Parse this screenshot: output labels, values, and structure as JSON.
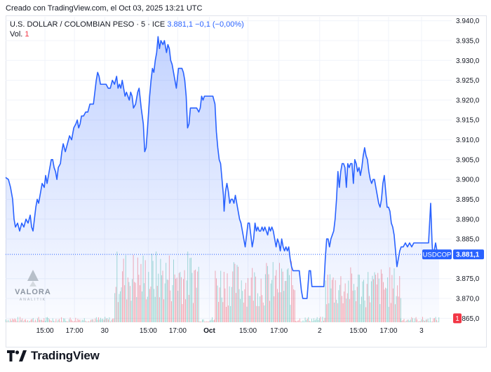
{
  "header": {
    "created_label": "Creado con TradingView.com, el Oct 03, 2025 13:21 UTC"
  },
  "legend": {
    "symbol": "U.S. DOLLAR / COLOMBIAN PESO · 5 · ICE",
    "last": "3.881,1",
    "change": "−0,1 (−0,00%)",
    "vol_label": "Vol.",
    "vol_value": "1"
  },
  "watermark": {
    "brand": "VALORA",
    "sub": "ANALITIK"
  },
  "footer": {
    "logo_text": "TradingView",
    "logo_icon": "tradingview-logo-icon"
  },
  "colors": {
    "line": "#2962ff",
    "fill_top": "#2962ff",
    "vol_up": "#22ab94",
    "vol_down": "#f23645",
    "last_price_tag": "#2962ff",
    "vol_tag": "#f23645"
  },
  "chart_data": {
    "type": "area",
    "symbol_tag": "USDCOP",
    "last_price": 3881.1,
    "last_price_label": "3.881,1",
    "vol_tag_label": "1",
    "y_range": [
      3864,
      3941
    ],
    "y_ticks": [
      {
        "value": 3940,
        "label": "3.940,0"
      },
      {
        "value": 3935,
        "label": "3.935,0"
      },
      {
        "value": 3930,
        "label": "3.930,0"
      },
      {
        "value": 3925,
        "label": "3.925,0"
      },
      {
        "value": 3920,
        "label": "3.920,0"
      },
      {
        "value": 3915,
        "label": "3.915,0"
      },
      {
        "value": 3910,
        "label": "3.910,0"
      },
      {
        "value": 3905,
        "label": "3.905,0"
      },
      {
        "value": 3900,
        "label": "3.900,0"
      },
      {
        "value": 3895,
        "label": "3.895,0"
      },
      {
        "value": 3890,
        "label": "3.890,0"
      },
      {
        "value": 3885,
        "label": "3.885,0"
      },
      {
        "value": 3875,
        "label": "3.875,0"
      },
      {
        "value": 3870,
        "label": "3.870,0"
      },
      {
        "value": 3865,
        "label": "3.865,0"
      }
    ],
    "x_range": [
      0,
      617
    ],
    "x_ticks": [
      {
        "x": 56,
        "label": "15:00",
        "bold": false
      },
      {
        "x": 98,
        "label": "17:00",
        "bold": false
      },
      {
        "x": 141,
        "label": "30",
        "bold": false
      },
      {
        "x": 203,
        "label": "15:00",
        "bold": false
      },
      {
        "x": 245,
        "label": "17:00",
        "bold": false
      },
      {
        "x": 290,
        "label": "Oct",
        "bold": true
      },
      {
        "x": 345,
        "label": "15:00",
        "bold": false
      },
      {
        "x": 389,
        "label": "17:00",
        "bold": false
      },
      {
        "x": 447,
        "label": "2",
        "bold": false
      },
      {
        "x": 502,
        "label": "15:00",
        "bold": false
      },
      {
        "x": 545,
        "label": "17:00",
        "bold": false
      },
      {
        "x": 592,
        "label": "3",
        "bold": false
      }
    ],
    "series": [
      {
        "points": [
          [
            0,
            3900.5
          ],
          [
            4,
            3900
          ],
          [
            7,
            3898
          ],
          [
            10,
            3895
          ],
          [
            12,
            3890
          ],
          [
            14,
            3888
          ],
          [
            17,
            3889
          ],
          [
            20,
            3887
          ],
          [
            23,
            3889
          ],
          [
            26,
            3888
          ],
          [
            29,
            3890
          ],
          [
            32,
            3889
          ],
          [
            35,
            3891
          ],
          [
            37,
            3888
          ],
          [
            39,
            3887
          ],
          [
            41,
            3890
          ],
          [
            43,
            3893
          ],
          [
            45,
            3895
          ],
          [
            47,
            3894
          ],
          [
            50,
            3897
          ],
          [
            52,
            3899
          ],
          [
            55,
            3898
          ],
          [
            57,
            3901
          ],
          [
            59,
            3899
          ],
          [
            61,
            3901
          ],
          [
            63,
            3903
          ],
          [
            65,
            3905
          ],
          [
            67,
            3905
          ],
          [
            69,
            3903
          ],
          [
            71,
            3902
          ],
          [
            73,
            3900
          ],
          [
            75,
            3903
          ],
          [
            78,
            3904
          ],
          [
            80,
            3907
          ],
          [
            82,
            3909
          ],
          [
            85,
            3907
          ],
          [
            88,
            3909
          ],
          [
            91,
            3911
          ],
          [
            94,
            3910
          ],
          [
            97,
            3913
          ],
          [
            100,
            3914
          ],
          [
            102,
            3915
          ],
          [
            104,
            3913
          ],
          [
            106,
            3914
          ],
          [
            108,
            3916
          ],
          [
            111,
            3916
          ],
          [
            114,
            3917
          ],
          [
            117,
            3917
          ],
          [
            120,
            3919
          ],
          [
            123,
            3919
          ],
          [
            125,
            3919
          ],
          [
            127,
            3922
          ],
          [
            129,
            3925
          ],
          [
            131,
            3927
          ],
          [
            133,
            3926
          ],
          [
            135,
            3924
          ],
          [
            137,
            3924
          ],
          [
            140,
            3924
          ],
          [
            143,
            3924
          ],
          [
            146,
            3923
          ],
          [
            149,
            3923
          ],
          [
            152,
            3925
          ],
          [
            155,
            3924
          ],
          [
            158,
            3926
          ],
          [
            160,
            3923
          ],
          [
            162,
            3924
          ],
          [
            164,
            3923
          ],
          [
            166,
            3925
          ],
          [
            168,
            3923
          ],
          [
            170,
            3921
          ],
          [
            172,
            3922
          ],
          [
            174,
            3921
          ],
          [
            176,
            3920
          ],
          [
            178,
            3922
          ],
          [
            180,
            3921
          ],
          [
            182,
            3918
          ],
          [
            185,
            3919
          ],
          [
            188,
            3922
          ],
          [
            190,
            3923
          ],
          [
            193,
            3918
          ],
          [
            196,
            3914
          ],
          [
            198,
            3907
          ],
          [
            200,
            3908
          ],
          [
            202,
            3913
          ],
          [
            205,
            3921
          ],
          [
            207,
            3925
          ],
          [
            209,
            3928
          ],
          [
            211,
            3927
          ],
          [
            213,
            3930
          ],
          [
            215,
            3932
          ],
          [
            217,
            3936
          ],
          [
            219,
            3933
          ],
          [
            221,
            3935
          ],
          [
            224,
            3934
          ],
          [
            226,
            3935
          ],
          [
            229,
            3932
          ],
          [
            231,
            3934
          ],
          [
            233,
            3933
          ],
          [
            235,
            3930
          ],
          [
            237,
            3929
          ],
          [
            240,
            3926
          ],
          [
            243,
            3923
          ],
          [
            246,
            3928
          ],
          [
            249,
            3928
          ],
          [
            251,
            3928
          ],
          [
            253,
            3927
          ],
          [
            255,
            3925
          ],
          [
            257,
            3921
          ],
          [
            259,
            3913
          ],
          [
            261,
            3914
          ],
          [
            263,
            3918
          ],
          [
            266,
            3918
          ],
          [
            269,
            3918
          ],
          [
            272,
            3918
          ],
          [
            275,
            3917
          ],
          [
            277,
            3918
          ],
          [
            279,
            3921
          ],
          [
            281,
            3920
          ],
          [
            283,
            3921
          ],
          [
            286,
            3921
          ],
          [
            289,
            3921
          ],
          [
            292,
            3921
          ],
          [
            295,
            3921
          ],
          [
            298,
            3919
          ],
          [
            300,
            3912
          ],
          [
            302,
            3908
          ],
          [
            304,
            3905
          ],
          [
            306,
            3904
          ],
          [
            308,
            3900
          ],
          [
            310,
            3896
          ],
          [
            311,
            3892
          ],
          [
            313,
            3897
          ],
          [
            315,
            3899
          ],
          [
            317,
            3897
          ],
          [
            319,
            3894
          ],
          [
            321,
            3895
          ],
          [
            323,
            3895
          ],
          [
            325,
            3894
          ],
          [
            327,
            3896
          ],
          [
            329,
            3894
          ],
          [
            331,
            3892
          ],
          [
            333,
            3890
          ],
          [
            335,
            3889
          ],
          [
            337,
            3887
          ],
          [
            339,
            3885
          ],
          [
            341,
            3883
          ],
          [
            343,
            3886
          ],
          [
            345,
            3889
          ],
          [
            347,
            3889
          ],
          [
            349,
            3886
          ],
          [
            351,
            3883
          ],
          [
            353,
            3885
          ],
          [
            355,
            3889
          ],
          [
            357,
            3887
          ],
          [
            359,
            3888
          ],
          [
            361,
            3887
          ],
          [
            363,
            3887
          ],
          [
            365,
            3888
          ],
          [
            367,
            3887
          ],
          [
            369,
            3888
          ],
          [
            371,
            3887
          ],
          [
            373,
            3886
          ],
          [
            375,
            3888
          ],
          [
            377,
            3887
          ],
          [
            379,
            3888
          ],
          [
            381,
            3887
          ],
          [
            383,
            3885
          ],
          [
            385,
            3883
          ],
          [
            387,
            3885
          ],
          [
            389,
            3884
          ],
          [
            391,
            3882
          ],
          [
            393,
            3885
          ],
          [
            395,
            3883
          ],
          [
            397,
            3882
          ],
          [
            399,
            3883
          ],
          [
            401,
            3882
          ],
          [
            403,
            3883
          ],
          [
            405,
            3880
          ],
          [
            407,
            3878
          ],
          [
            409,
            3877
          ],
          [
            412,
            3877
          ],
          [
            415,
            3877
          ],
          [
            418,
            3877
          ],
          [
            421,
            3872
          ],
          [
            423,
            3870
          ],
          [
            426,
            3870
          ],
          [
            429,
            3870
          ],
          [
            432,
            3877
          ],
          [
            434,
            3877
          ],
          [
            436,
            3873
          ],
          [
            438,
            3873
          ],
          [
            441,
            3873
          ],
          [
            444,
            3873
          ],
          [
            447,
            3873
          ],
          [
            450,
            3873
          ],
          [
            453,
            3873
          ],
          [
            455,
            3880
          ],
          [
            457,
            3885
          ],
          [
            459,
            3885
          ],
          [
            461,
            3883
          ],
          [
            463,
            3885
          ],
          [
            465,
            3886
          ],
          [
            467,
            3887
          ],
          [
            469,
            3890
          ],
          [
            471,
            3895
          ],
          [
            473,
            3902
          ],
          [
            475,
            3898
          ],
          [
            477,
            3902
          ],
          [
            479,
            3904
          ],
          [
            481,
            3904
          ],
          [
            483,
            3903
          ],
          [
            485,
            3898
          ],
          [
            487,
            3904
          ],
          [
            489,
            3903
          ],
          [
            491,
            3904
          ],
          [
            493,
            3904
          ],
          [
            495,
            3899
          ],
          [
            497,
            3905
          ],
          [
            499,
            3904
          ],
          [
            501,
            3902
          ],
          [
            503,
            3903
          ],
          [
            505,
            3901
          ],
          [
            507,
            3903
          ],
          [
            509,
            3906
          ],
          [
            511,
            3908
          ],
          [
            513,
            3906
          ],
          [
            515,
            3905
          ],
          [
            517,
            3902
          ],
          [
            519,
            3900
          ],
          [
            521,
            3899
          ],
          [
            523,
            3900
          ],
          [
            525,
            3900
          ],
          [
            527,
            3898
          ],
          [
            529,
            3896
          ],
          [
            531,
            3894
          ],
          [
            533,
            3893
          ],
          [
            535,
            3895
          ],
          [
            537,
            3899
          ],
          [
            539,
            3901
          ],
          [
            541,
            3897
          ],
          [
            543,
            3893
          ],
          [
            545,
            3893
          ],
          [
            547,
            3892
          ],
          [
            549,
            3889
          ],
          [
            551,
            3888
          ],
          [
            553,
            3886
          ],
          [
            555,
            3882
          ],
          [
            557,
            3878
          ],
          [
            559,
            3880
          ],
          [
            561,
            3882
          ],
          [
            563,
            3883
          ],
          [
            566,
            3883
          ],
          [
            569,
            3884
          ],
          [
            572,
            3883
          ],
          [
            575,
            3884
          ],
          [
            578,
            3883
          ],
          [
            581,
            3884
          ],
          [
            584,
            3884
          ],
          [
            587,
            3884
          ],
          [
            590,
            3884
          ],
          [
            593,
            3884
          ],
          [
            596,
            3884
          ],
          [
            599,
            3884
          ],
          [
            601,
            3884
          ],
          [
            602,
            3884
          ],
          [
            605,
            3894
          ],
          [
            607,
            3884
          ],
          [
            608,
            3881
          ],
          [
            610,
            3882
          ],
          [
            612,
            3884
          ],
          [
            614,
            3882
          ],
          [
            617,
            3881.1
          ]
        ]
      }
    ],
    "volume_clusters": [
      {
        "from": 0,
        "to": 155,
        "max": 2
      },
      {
        "from": 155,
        "to": 275,
        "max": 26
      },
      {
        "from": 275,
        "to": 298,
        "max": 2
      },
      {
        "from": 298,
        "to": 412,
        "max": 22
      },
      {
        "from": 412,
        "to": 455,
        "max": 2
      },
      {
        "from": 455,
        "to": 562,
        "max": 20
      },
      {
        "from": 562,
        "to": 617,
        "max": 2
      }
    ]
  }
}
